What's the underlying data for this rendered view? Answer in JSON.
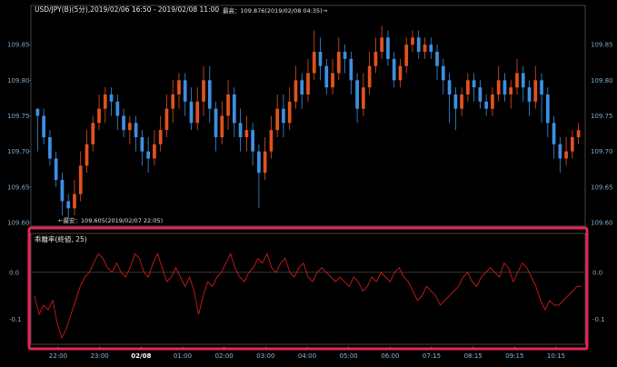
{
  "chart_data": [
    {
      "type": "candlestick",
      "title": "USD/JPY(B)(5分),2019/02/06 16:50 - 2019/02/08 11:00",
      "ylim": [
        109.6,
        109.9
      ],
      "y_ticks": [
        "109.85",
        "109.80",
        "109.75",
        "109.70",
        "109.65",
        "109.60"
      ],
      "annotations": {
        "high": "最高：109.876(2019/02/08 04:35)→",
        "low": "←最安：109.605(2019/02/07 22:05)"
      },
      "colors": {
        "up": "#e0521f",
        "down": "#3d8fe0"
      },
      "candles": [
        [
          109.76,
          109.75,
          109.76,
          109.7
        ],
        [
          109.75,
          109.72,
          109.76,
          109.71
        ],
        [
          109.72,
          109.69,
          109.73,
          109.68
        ],
        [
          109.69,
          109.66,
          109.7,
          109.65
        ],
        [
          109.66,
          109.63,
          109.67,
          109.61
        ],
        [
          109.63,
          109.62,
          109.64,
          109.605
        ],
        [
          109.62,
          109.64,
          109.66,
          109.61
        ],
        [
          109.64,
          109.68,
          109.7,
          109.63
        ],
        [
          109.68,
          109.71,
          109.73,
          109.67
        ],
        [
          109.71,
          109.74,
          109.75,
          109.7
        ],
        [
          109.74,
          109.76,
          109.78,
          109.73
        ],
        [
          109.76,
          109.78,
          109.79,
          109.74
        ],
        [
          109.78,
          109.77,
          109.79,
          109.75
        ],
        [
          109.77,
          109.75,
          109.78,
          109.73
        ],
        [
          109.75,
          109.73,
          109.76,
          109.72
        ],
        [
          109.73,
          109.74,
          109.75,
          109.71
        ],
        [
          109.74,
          109.72,
          109.75,
          109.7
        ],
        [
          109.72,
          109.7,
          109.73,
          109.68
        ],
        [
          109.7,
          109.69,
          109.72,
          109.67
        ],
        [
          109.69,
          109.71,
          109.73,
          109.68
        ],
        [
          109.71,
          109.73,
          109.75,
          109.7
        ],
        [
          109.73,
          109.76,
          109.78,
          109.72
        ],
        [
          109.76,
          109.78,
          109.8,
          109.74
        ],
        [
          109.78,
          109.8,
          109.81,
          109.76
        ],
        [
          109.8,
          109.77,
          109.81,
          109.75
        ],
        [
          109.77,
          109.74,
          109.79,
          109.73
        ],
        [
          109.74,
          109.77,
          109.79,
          109.73
        ],
        [
          109.77,
          109.8,
          109.82,
          109.75
        ],
        [
          109.8,
          109.76,
          109.82,
          109.74
        ],
        [
          109.76,
          109.72,
          109.77,
          109.7
        ],
        [
          109.72,
          109.75,
          109.77,
          109.71
        ],
        [
          109.75,
          109.78,
          109.8,
          109.73
        ],
        [
          109.78,
          109.74,
          109.79,
          109.72
        ],
        [
          109.74,
          109.72,
          109.76,
          109.7
        ],
        [
          109.72,
          109.73,
          109.75,
          109.7
        ],
        [
          109.73,
          109.7,
          109.74,
          109.68
        ],
        [
          109.7,
          109.67,
          109.71,
          109.62
        ],
        [
          109.67,
          109.7,
          109.72,
          109.66
        ],
        [
          109.7,
          109.73,
          109.75,
          109.69
        ],
        [
          109.73,
          109.76,
          109.78,
          109.72
        ],
        [
          109.76,
          109.74,
          109.78,
          109.72
        ],
        [
          109.74,
          109.77,
          109.79,
          109.73
        ],
        [
          109.77,
          109.8,
          109.82,
          109.76
        ],
        [
          109.8,
          109.78,
          109.81,
          109.76
        ],
        [
          109.78,
          109.81,
          109.83,
          109.77
        ],
        [
          109.81,
          109.84,
          109.87,
          109.8
        ],
        [
          109.84,
          109.82,
          109.86,
          109.8
        ],
        [
          109.82,
          109.79,
          109.83,
          109.78
        ],
        [
          109.79,
          109.81,
          109.83,
          109.78
        ],
        [
          109.81,
          109.84,
          109.86,
          109.8
        ],
        [
          109.84,
          109.83,
          109.85,
          109.81
        ],
        [
          109.83,
          109.8,
          109.84,
          109.78
        ],
        [
          109.8,
          109.76,
          109.81,
          109.74
        ],
        [
          109.76,
          109.79,
          109.81,
          109.75
        ],
        [
          109.79,
          109.82,
          109.84,
          109.78
        ],
        [
          109.82,
          109.84,
          109.86,
          109.81
        ],
        [
          109.84,
          109.86,
          109.876,
          109.83
        ],
        [
          109.86,
          109.83,
          109.87,
          109.82
        ],
        [
          109.83,
          109.8,
          109.84,
          109.79
        ],
        [
          109.8,
          109.82,
          109.83,
          109.79
        ],
        [
          109.82,
          109.85,
          109.86,
          109.81
        ],
        [
          109.85,
          109.86,
          109.87,
          109.84
        ],
        [
          109.86,
          109.84,
          109.87,
          109.83
        ],
        [
          109.84,
          109.85,
          109.86,
          109.83
        ],
        [
          109.85,
          109.84,
          109.86,
          109.83
        ],
        [
          109.84,
          109.82,
          109.85,
          109.8
        ],
        [
          109.82,
          109.8,
          109.83,
          109.78
        ],
        [
          109.8,
          109.78,
          109.81,
          109.74
        ],
        [
          109.78,
          109.76,
          109.79,
          109.73
        ],
        [
          109.76,
          109.78,
          109.79,
          109.75
        ],
        [
          109.78,
          109.8,
          109.81,
          109.77
        ],
        [
          109.8,
          109.79,
          109.81,
          109.77
        ],
        [
          109.79,
          109.77,
          109.8,
          109.76
        ],
        [
          109.77,
          109.76,
          109.78,
          109.75
        ],
        [
          109.76,
          109.78,
          109.79,
          109.75
        ],
        [
          109.78,
          109.8,
          109.82,
          109.77
        ],
        [
          109.8,
          109.78,
          109.81,
          109.77
        ],
        [
          109.78,
          109.79,
          109.8,
          109.76
        ],
        [
          109.79,
          109.81,
          109.83,
          109.78
        ],
        [
          109.81,
          109.79,
          109.82,
          109.77
        ],
        [
          109.79,
          109.77,
          109.8,
          109.75
        ],
        [
          109.77,
          109.8,
          109.82,
          109.76
        ],
        [
          109.8,
          109.78,
          109.81,
          109.74
        ],
        [
          109.78,
          109.74,
          109.79,
          109.72
        ],
        [
          109.74,
          109.71,
          109.75,
          109.69
        ],
        [
          109.71,
          109.69,
          109.72,
          109.67
        ],
        [
          109.69,
          109.7,
          109.72,
          109.68
        ],
        [
          109.7,
          109.72,
          109.73,
          109.69
        ],
        [
          109.72,
          109.73,
          109.74,
          109.71
        ]
      ]
    },
    {
      "type": "line",
      "title": "乖離率(終値, 25)",
      "ylim": [
        -0.15,
        0.06
      ],
      "y_ticks": [
        "0.0",
        "-0.1"
      ],
      "x_ticks": [
        "22:00",
        "23:00",
        "02/08",
        "01:00",
        "02:00",
        "03:00",
        "04:00",
        "05:00",
        "06:00",
        "07:15",
        "08:15",
        "09:15",
        "10:15"
      ],
      "line_color": "#cc1a1a",
      "highlight_color": "#e8245a",
      "values": [
        -0.05,
        -0.09,
        -0.07,
        -0.08,
        -0.06,
        -0.11,
        -0.14,
        -0.12,
        -0.09,
        -0.06,
        -0.03,
        -0.01,
        0.0,
        0.02,
        0.04,
        0.03,
        0.01,
        0.0,
        0.02,
        0.0,
        -0.01,
        0.01,
        0.04,
        0.03,
        0.0,
        -0.01,
        0.02,
        0.04,
        0.01,
        -0.02,
        -0.01,
        0.01,
        -0.01,
        -0.03,
        -0.01,
        -0.04,
        -0.09,
        -0.05,
        -0.02,
        -0.03,
        -0.01,
        0.0,
        0.02,
        0.04,
        0.01,
        -0.01,
        -0.02,
        0.0,
        0.01,
        0.03,
        0.02,
        0.04,
        0.01,
        0.0,
        0.02,
        0.03,
        0.0,
        -0.01,
        0.01,
        0.02,
        -0.01,
        -0.02,
        0.0,
        0.01,
        0.0,
        -0.01,
        -0.02,
        -0.01,
        -0.02,
        -0.03,
        -0.01,
        -0.02,
        -0.04,
        -0.03,
        -0.01,
        -0.02,
        0.0,
        -0.01,
        -0.02,
        0.0,
        0.01,
        -0.01,
        -0.02,
        -0.04,
        -0.06,
        -0.05,
        -0.03,
        -0.04,
        -0.05,
        -0.07,
        -0.06,
        -0.05,
        -0.04,
        -0.03,
        -0.01,
        0.0,
        -0.02,
        -0.03,
        -0.01,
        0.0,
        0.01,
        0.0,
        -0.01,
        0.02,
        0.01,
        -0.02,
        0.0,
        0.02,
        0.01,
        -0.01,
        -0.03,
        -0.06,
        -0.08,
        -0.06,
        -0.07,
        -0.07,
        -0.06,
        -0.05,
        -0.04,
        -0.03,
        -0.03
      ]
    }
  ]
}
